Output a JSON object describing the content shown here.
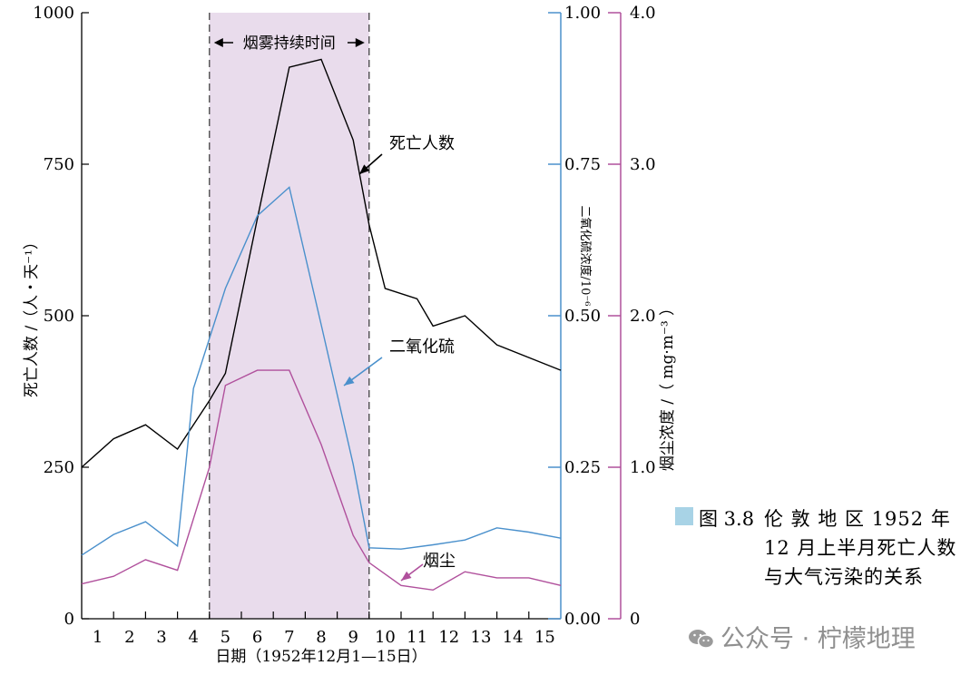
{
  "chart_data": {
    "type": "line",
    "x": [
      1,
      2,
      3,
      4,
      5,
      6,
      7,
      8,
      9,
      10,
      11,
      12,
      13,
      14,
      15
    ],
    "x_tick_labels": [
      "1",
      "2",
      "3",
      "4",
      "5",
      "6",
      "7",
      "8",
      "9",
      "10",
      "11",
      "12",
      "13",
      "14",
      "15"
    ],
    "xlabel": "日期（1952年12月1—15日）",
    "xlim": [
      0.5,
      15.5
    ],
    "ylabel_left": "死亡人数 /（人・天⁻¹）",
    "ylim_left": [
      0,
      1000
    ],
    "yticks_left": [
      "0",
      "250",
      "500",
      "750",
      "1000"
    ],
    "ylabel_right1": "二氧化硫浓度/10⁻⁶",
    "ylim_right1": [
      0,
      1.0
    ],
    "yticks_right1": [
      "0.00",
      "0.25",
      "0.50",
      "0.75",
      "1.00"
    ],
    "ylabel_right2": "烟尘浓度 /（ mg·m⁻³ ）",
    "ylim_right2": [
      0,
      4.0
    ],
    "yticks_right2": [
      "0",
      "1.0",
      "2.0",
      "3.0",
      "4.0"
    ],
    "shaded_region": {
      "x_start": 4.5,
      "x_end": 9.5,
      "label": "烟雾持续时间",
      "color": "#e9dcec"
    },
    "series": [
      {
        "name": "死亡人数",
        "axis": "left",
        "color": "#000000",
        "points": [
          [
            0.5,
            250
          ],
          [
            1.5,
            297
          ],
          [
            2.5,
            320
          ],
          [
            3.5,
            280
          ],
          [
            4.5,
            360
          ],
          [
            5.0,
            405
          ],
          [
            6.0,
            660
          ],
          [
            7.0,
            910
          ],
          [
            8.0,
            923
          ],
          [
            9.0,
            790
          ],
          [
            9.5,
            650
          ],
          [
            10.0,
            545
          ],
          [
            11.0,
            528
          ],
          [
            11.5,
            483
          ],
          [
            12.5,
            500
          ],
          [
            13.5,
            452
          ],
          [
            15.5,
            410
          ]
        ]
      },
      {
        "name": "二氧化硫",
        "axis": "right1",
        "color": "#4a90cc",
        "points": [
          [
            0.5,
            0.105
          ],
          [
            1.5,
            0.139
          ],
          [
            2.5,
            0.16
          ],
          [
            3.5,
            0.12
          ],
          [
            4.0,
            0.38
          ],
          [
            5.0,
            0.545
          ],
          [
            6.0,
            0.665
          ],
          [
            7.0,
            0.712
          ],
          [
            8.0,
            0.485
          ],
          [
            9.0,
            0.255
          ],
          [
            9.5,
            0.117
          ],
          [
            10.5,
            0.115
          ],
          [
            11.5,
            0.122
          ],
          [
            12.5,
            0.13
          ],
          [
            13.5,
            0.15
          ],
          [
            14.5,
            0.143
          ],
          [
            15.5,
            0.133
          ]
        ]
      },
      {
        "name": "烟尘",
        "axis": "right2",
        "color": "#b0509c",
        "points": [
          [
            0.5,
            0.23
          ],
          [
            1.5,
            0.28
          ],
          [
            2.5,
            0.39
          ],
          [
            3.5,
            0.32
          ],
          [
            4.5,
            1.0
          ],
          [
            5.0,
            1.54
          ],
          [
            6.0,
            1.64
          ],
          [
            7.0,
            1.64
          ],
          [
            8.0,
            1.15
          ],
          [
            9.0,
            0.55
          ],
          [
            9.5,
            0.37
          ],
          [
            10.5,
            0.22
          ],
          [
            11.5,
            0.19
          ],
          [
            12.5,
            0.31
          ],
          [
            13.5,
            0.27
          ],
          [
            14.5,
            0.27
          ],
          [
            15.5,
            0.22
          ]
        ]
      }
    ],
    "annotations": [
      {
        "text": "死亡人数",
        "color": "#000000"
      },
      {
        "text": "二氧化硫",
        "color": "#4a90cc"
      },
      {
        "text": "烟尘",
        "color": "#b0509c"
      }
    ]
  },
  "caption": {
    "label": "图 3.8",
    "text": "伦 敦 地 区 1952 年 12 月上半月死亡人数与大气污染的关系",
    "swatch_color": "#a8d3e6"
  },
  "watermark": {
    "text": "公众号 · 柠檬地理"
  }
}
